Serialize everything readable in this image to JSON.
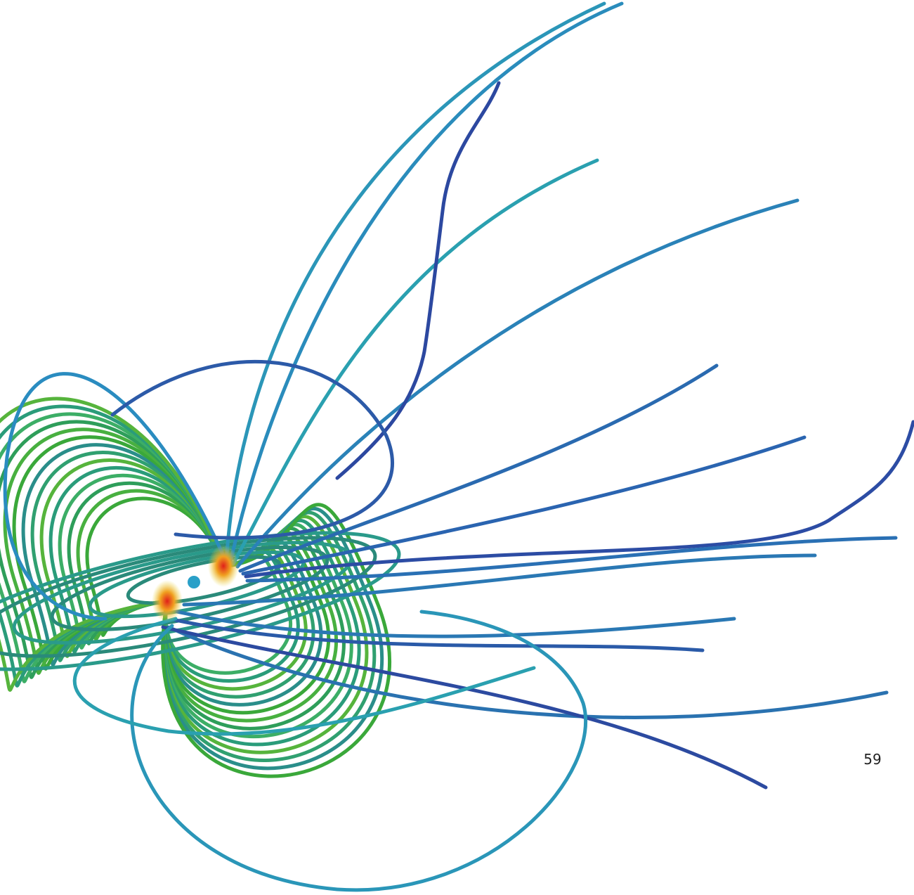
{
  "page_number": "59"
}
